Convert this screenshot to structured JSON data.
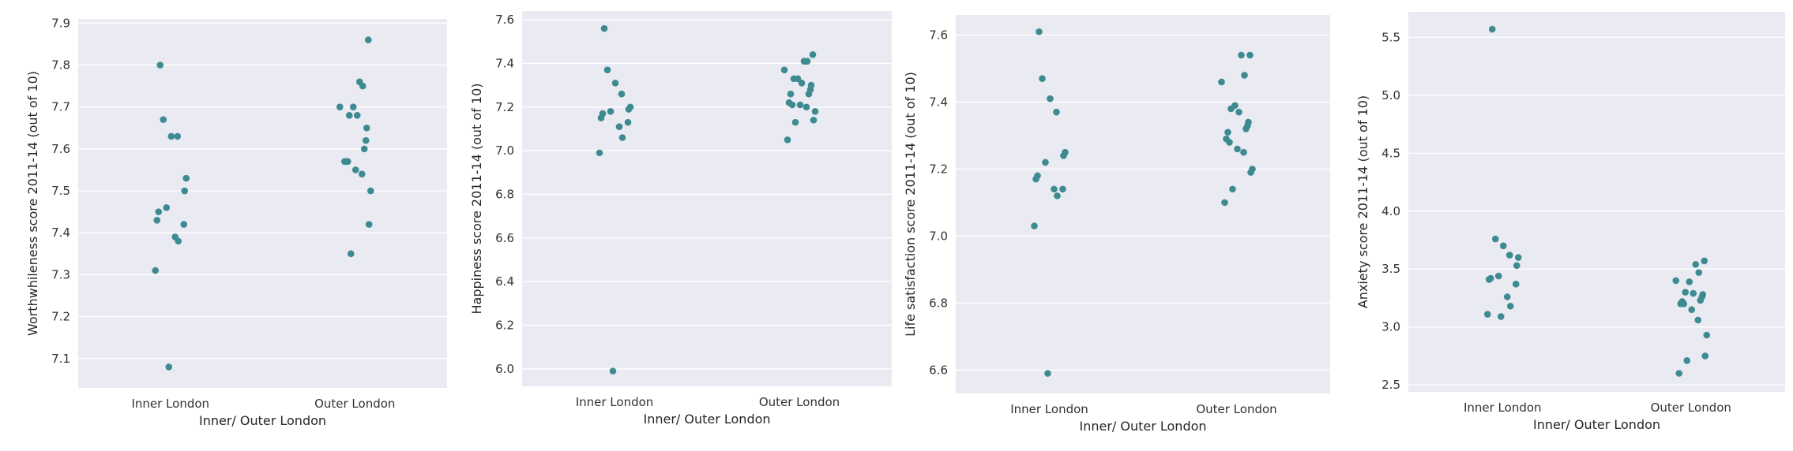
{
  "chart_data": [
    {
      "type": "scatter",
      "title": "",
      "xlabel": "Inner/ Outer London",
      "ylabel": "Worthwhileness score 2011-14 (out of 10)",
      "categories": [
        "Inner London",
        "Outer London"
      ],
      "ylim": [
        7.03,
        7.91
      ],
      "yticks": [
        "7.1",
        "7.2",
        "7.3",
        "7.4",
        "7.5",
        "7.6",
        "7.7",
        "7.8",
        "7.9"
      ],
      "grid": true,
      "color": "#3d8b91",
      "series": [
        {
          "values": [
            7.8,
            7.67,
            7.63,
            7.63,
            7.53,
            7.5,
            7.46,
            7.45,
            7.43,
            7.42,
            7.39,
            7.38,
            7.31,
            7.08
          ]
        },
        {
          "values": [
            7.86,
            7.76,
            7.75,
            7.7,
            7.7,
            7.68,
            7.68,
            7.65,
            7.62,
            7.6,
            7.57,
            7.57,
            7.57,
            7.55,
            7.54,
            7.5,
            7.42,
            7.35
          ]
        }
      ]
    },
    {
      "type": "scatter",
      "title": "",
      "xlabel": "Inner/ Outer London",
      "ylabel": "Happiness score 2011-14 (out of 10)",
      "categories": [
        "Inner London",
        "Outer London"
      ],
      "ylim": [
        5.92,
        7.64
      ],
      "yticks": [
        "6.0",
        "6.2",
        "6.4",
        "6.6",
        "6.8",
        "7.0",
        "7.2",
        "7.4",
        "7.6"
      ],
      "grid": true,
      "color": "#3d8b91",
      "series": [
        {
          "values": [
            7.56,
            7.37,
            7.31,
            7.26,
            7.2,
            7.19,
            7.18,
            7.17,
            7.15,
            7.13,
            7.11,
            7.06,
            6.99,
            5.99
          ]
        },
        {
          "values": [
            7.44,
            7.41,
            7.41,
            7.37,
            7.33,
            7.33,
            7.31,
            7.3,
            7.28,
            7.26,
            7.26,
            7.22,
            7.21,
            7.21,
            7.2,
            7.18,
            7.14,
            7.13,
            7.05
          ]
        }
      ]
    },
    {
      "type": "scatter",
      "title": "",
      "xlabel": "Inner/ Outer London",
      "ylabel": "Life satisfaction score 2011-14 (out of 10)",
      "categories": [
        "Inner London",
        "Outer London"
      ],
      "ylim": [
        6.53,
        7.66
      ],
      "yticks": [
        "6.6",
        "6.8",
        "7.0",
        "7.2",
        "7.4",
        "7.6"
      ],
      "grid": true,
      "color": "#3d8b91",
      "series": [
        {
          "values": [
            7.61,
            7.47,
            7.41,
            7.37,
            7.25,
            7.24,
            7.22,
            7.18,
            7.17,
            7.14,
            7.14,
            7.12,
            7.03,
            6.59
          ]
        },
        {
          "values": [
            7.54,
            7.54,
            7.48,
            7.46,
            7.39,
            7.38,
            7.37,
            7.34,
            7.33,
            7.32,
            7.31,
            7.29,
            7.28,
            7.26,
            7.25,
            7.2,
            7.19,
            7.14,
            7.1
          ]
        }
      ]
    },
    {
      "type": "scatter",
      "title": "",
      "xlabel": "Inner/ Outer London",
      "ylabel": "Anxiety score 2011-14 (out of 10)",
      "categories": [
        "Inner London",
        "Outer London"
      ],
      "ylim": [
        2.44,
        5.72
      ],
      "yticks": [
        "2.5",
        "3.0",
        "3.5",
        "4.0",
        "4.5",
        "5.0",
        "5.5"
      ],
      "grid": true,
      "color": "#3d8b91",
      "series": [
        {
          "values": [
            5.57,
            3.76,
            3.7,
            3.62,
            3.6,
            3.53,
            3.44,
            3.42,
            3.41,
            3.37,
            3.26,
            3.18,
            3.11,
            3.09
          ]
        },
        {
          "values": [
            3.57,
            3.54,
            3.47,
            3.4,
            3.39,
            3.3,
            3.29,
            3.28,
            3.26,
            3.23,
            3.22,
            3.2,
            3.2,
            3.15,
            3.06,
            2.93,
            2.75,
            2.71,
            2.6
          ]
        }
      ]
    }
  ]
}
